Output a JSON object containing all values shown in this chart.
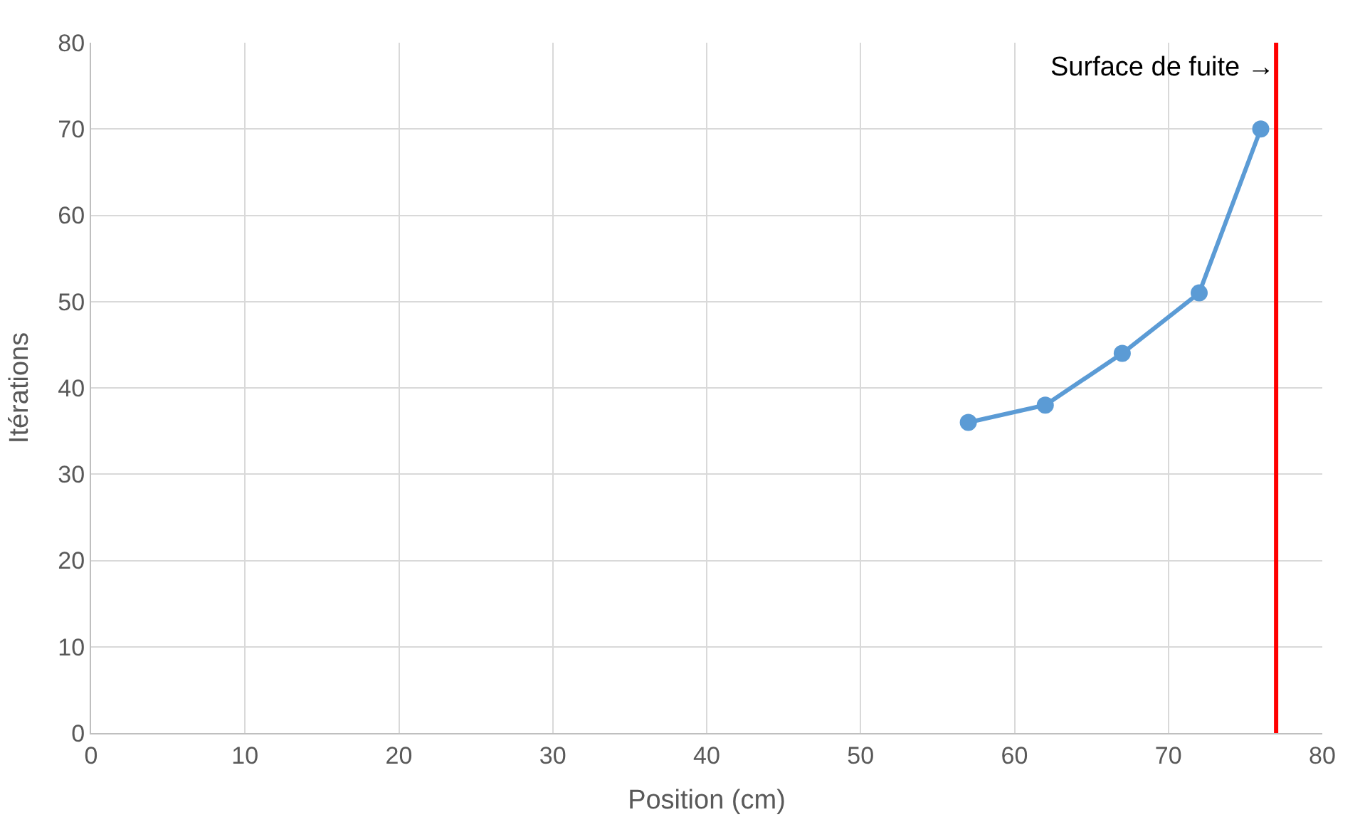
{
  "chart_data": {
    "type": "line",
    "xlabel": "Position (cm)",
    "ylabel": "Itérations",
    "x": [
      57,
      62,
      67,
      72,
      76
    ],
    "series": [
      {
        "color": "#5b9bd5",
        "values": [
          36,
          38,
          44,
          51,
          70
        ]
      }
    ],
    "xlim": [
      0,
      80
    ],
    "xticks": [
      0,
      10,
      20,
      30,
      40,
      50,
      60,
      70,
      80
    ],
    "ylim": [
      0,
      80
    ],
    "yticks": [
      0,
      10,
      20,
      30,
      40,
      50,
      60,
      70,
      80
    ],
    "grid": true,
    "marker": "circle",
    "line_style": "solid",
    "ref_lines": [
      {
        "axis": "x",
        "value": 77,
        "label": "Surface de fuite →",
        "color": "#ff0000"
      }
    ]
  }
}
